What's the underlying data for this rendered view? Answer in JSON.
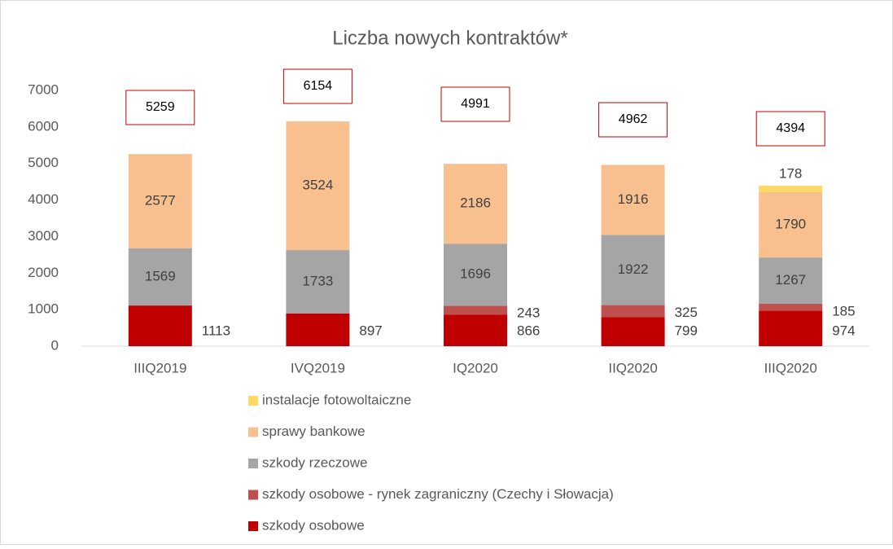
{
  "chart_data": {
    "type": "stacked_bar",
    "title": "Liczba nowych kontraktów*",
    "categories": [
      "IIIQ2019",
      "IVQ2019",
      "IQ2020",
      "IIQ2020",
      "IIIQ2020"
    ],
    "series": [
      {
        "name": "szkody osobowe",
        "color": "#c00000",
        "values": [
          1113,
          897,
          866,
          799,
          974
        ]
      },
      {
        "name": "szkody osobowe - rynek zagraniczny (Czechy i Słowacja)",
        "color": "#c0504d",
        "values": [
          null,
          null,
          243,
          325,
          185
        ]
      },
      {
        "name": "szkody rzeczowe",
        "color": "#a5a5a5",
        "values": [
          1569,
          1733,
          1696,
          1922,
          1267
        ]
      },
      {
        "name": "sprawy bankowe",
        "color": "#f8c08f",
        "values": [
          2577,
          3524,
          2186,
          1916,
          1790
        ]
      },
      {
        "name": "instalacje fotowoltaiczne",
        "color": "#ffd966",
        "values": [
          null,
          null,
          null,
          null,
          178
        ]
      }
    ],
    "totals": [
      5259,
      6154,
      4991,
      4962,
      4394
    ],
    "ylim": [
      0,
      7000
    ],
    "yticks": [
      0,
      1000,
      2000,
      3000,
      4000,
      5000,
      6000,
      7000
    ],
    "grid": false
  }
}
